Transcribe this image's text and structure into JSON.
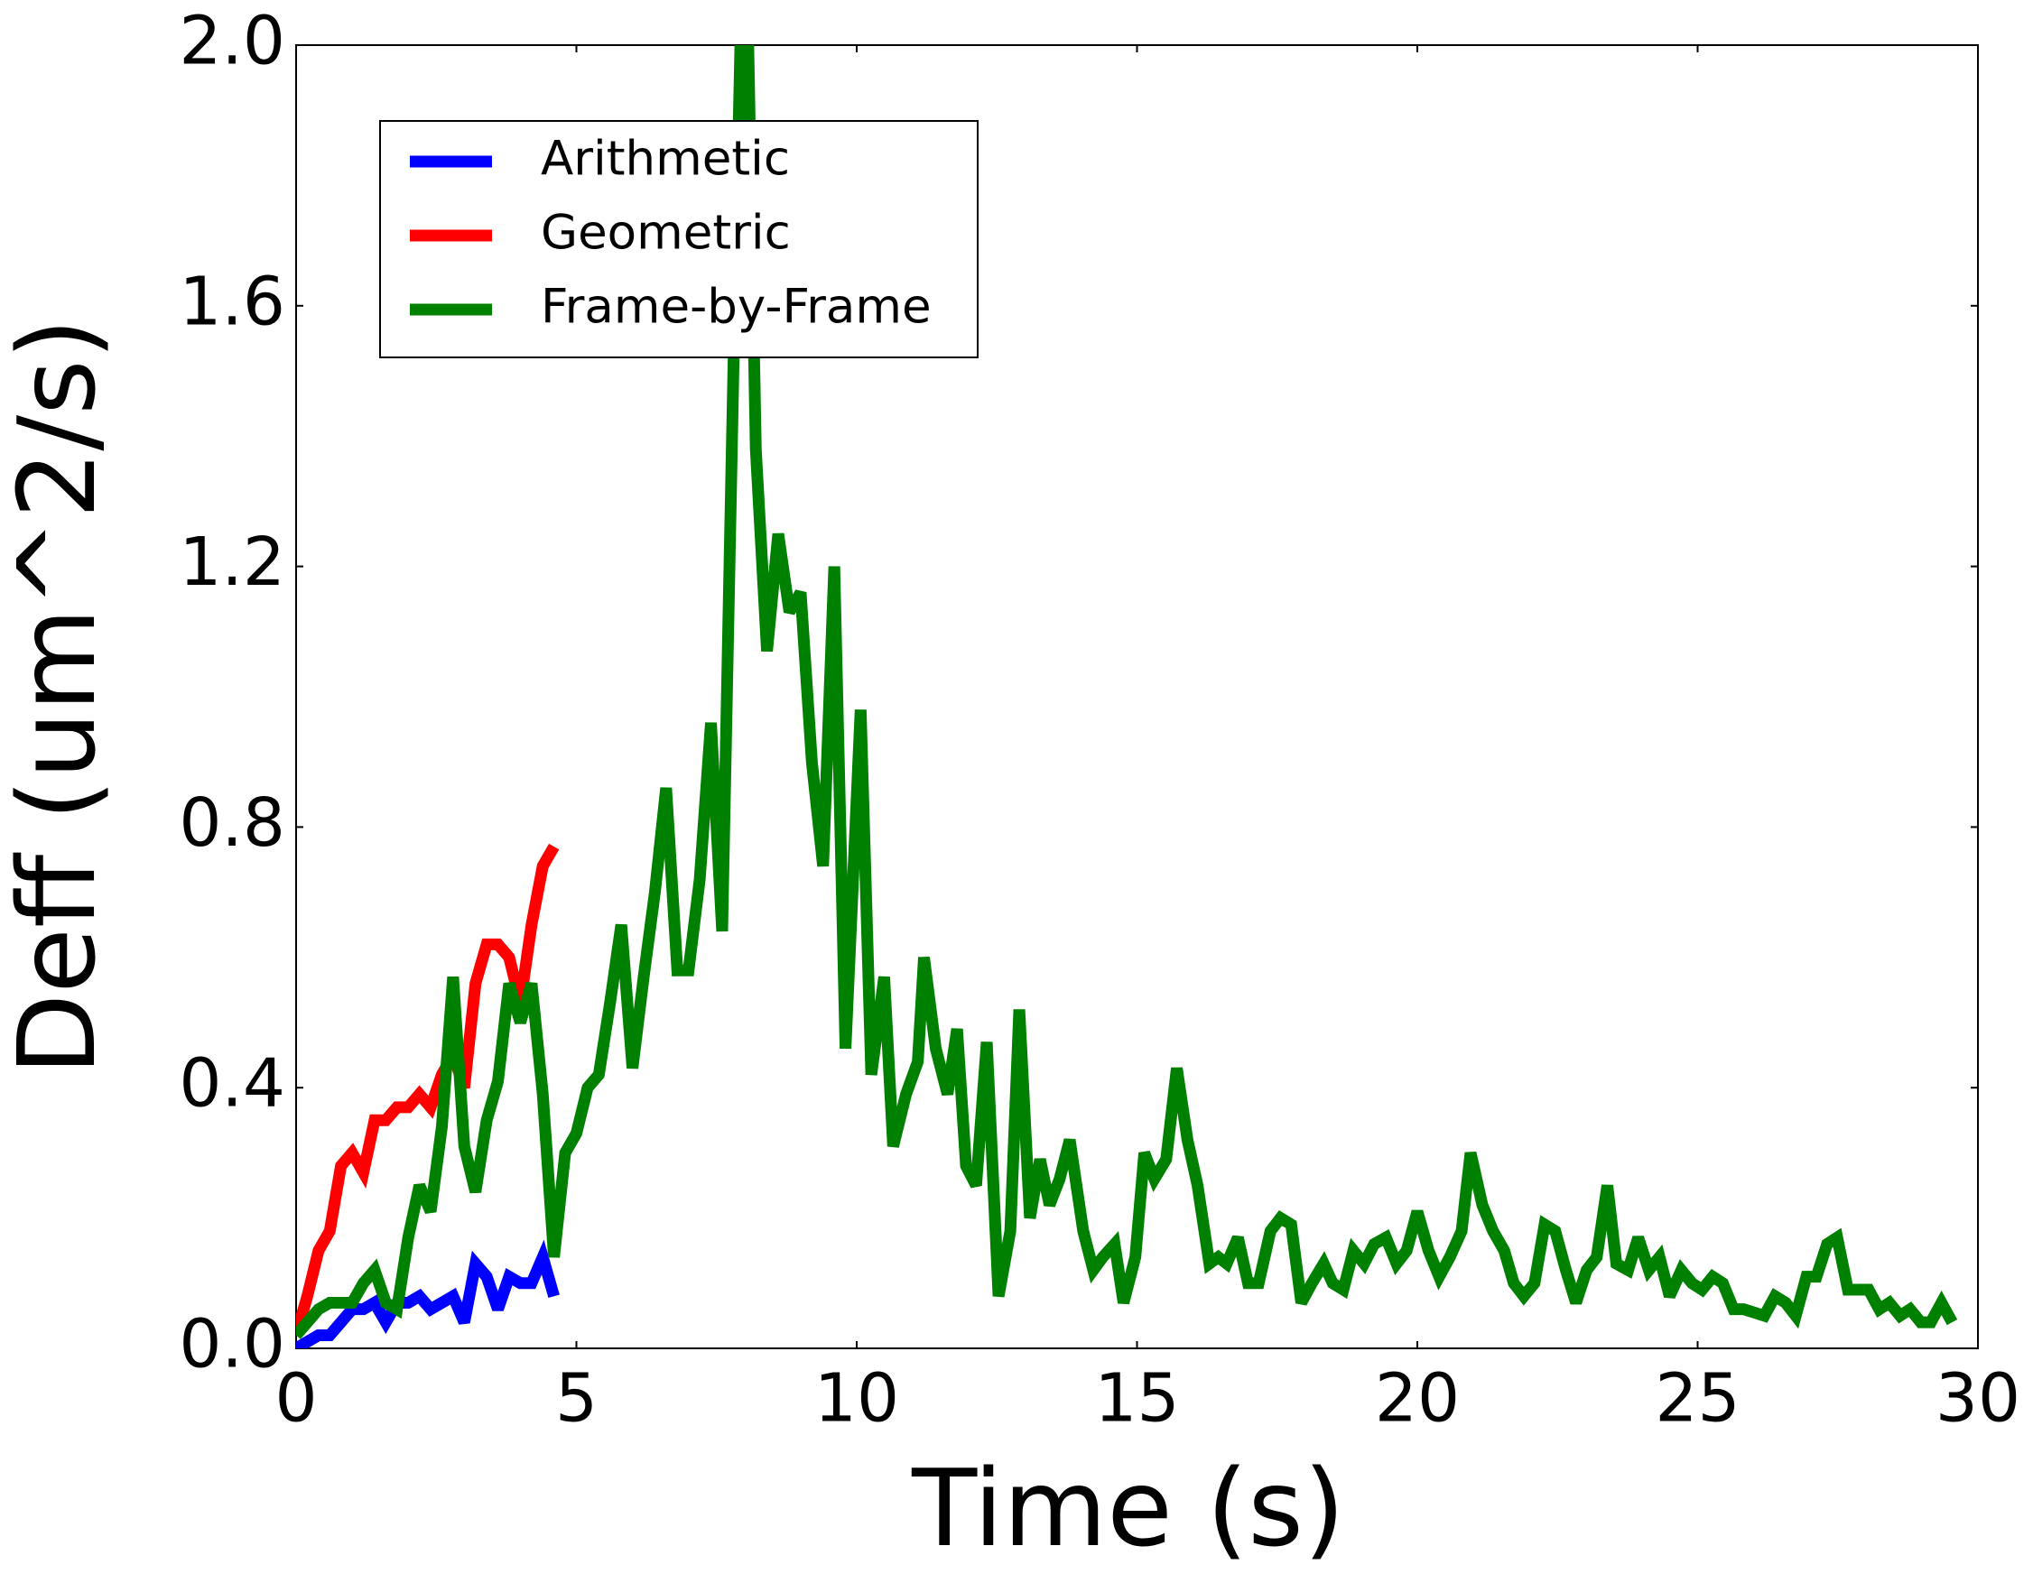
{
  "chart_data": {
    "type": "line",
    "xlabel": "Time (s)",
    "ylabel": "Deff (um^2/s)",
    "xlim": [
      0,
      30
    ],
    "ylim": [
      0,
      2.0
    ],
    "xticks": [
      0,
      5,
      10,
      15,
      20,
      25,
      30
    ],
    "yticks": [
      {
        "value": 0,
        "label": "0.0"
      },
      {
        "value": 0.4,
        "label": "0.4"
      },
      {
        "value": 0.8,
        "label": "0.8"
      },
      {
        "value": 1.2,
        "label": "1.2"
      },
      {
        "value": 1.6,
        "label": "1.6"
      },
      {
        "value": 2.0,
        "label": "2.0"
      }
    ],
    "legend": "upper left",
    "series": [
      {
        "name": "Arithmetic",
        "color": "#0000ff",
        "x": [
          0,
          0.2,
          0.4,
          0.6,
          0.8,
          1.0,
          1.2,
          1.4,
          1.6,
          1.8,
          2.0,
          2.2,
          2.4,
          2.6,
          2.8,
          3.0,
          3.2,
          3.4,
          3.6,
          3.8,
          4.0,
          4.2,
          4.4,
          4.6
        ],
        "values": [
          0,
          0.01,
          0.02,
          0.02,
          0.04,
          0.06,
          0.06,
          0.07,
          0.04,
          0.07,
          0.07,
          0.08,
          0.06,
          0.07,
          0.08,
          0.04,
          0.13,
          0.11,
          0.06,
          0.11,
          0.1,
          0.1,
          0.14,
          0.08
        ]
      },
      {
        "name": "Geometric",
        "color": "#ff0000",
        "x": [
          0,
          0.2,
          0.4,
          0.6,
          0.8,
          1.0,
          1.2,
          1.4,
          1.6,
          1.8,
          2.0,
          2.2,
          2.4,
          2.6,
          2.8,
          3.0,
          3.2,
          3.4,
          3.6,
          3.8,
          4.0,
          4.2,
          4.4,
          4.6
        ],
        "values": [
          0.02,
          0.08,
          0.15,
          0.18,
          0.28,
          0.3,
          0.27,
          0.35,
          0.35,
          0.37,
          0.37,
          0.39,
          0.37,
          0.42,
          0.45,
          0.4,
          0.56,
          0.62,
          0.62,
          0.6,
          0.53,
          0.65,
          0.74,
          0.77
        ]
      },
      {
        "name": "Frame-by-Frame",
        "color": "#008000",
        "x": [
          0,
          0.2,
          0.4,
          0.6,
          0.8,
          1.0,
          1.2,
          1.4,
          1.6,
          1.8,
          2.0,
          2.2,
          2.4,
          2.6,
          2.8,
          3.0,
          3.2,
          3.4,
          3.6,
          3.8,
          4.0,
          4.2,
          4.4,
          4.6,
          4.8,
          5.0,
          5.2,
          5.4,
          5.6,
          5.8,
          6.0,
          6.2,
          6.4,
          6.6,
          6.8,
          7.0,
          7.2,
          7.4,
          7.6,
          7.8,
          8.0,
          8.2,
          8.4,
          8.6,
          8.8,
          9.0,
          9.2,
          9.4,
          9.6,
          9.8,
          10.07,
          10.26,
          10.49,
          10.65,
          10.88,
          11.09,
          11.2,
          11.41,
          11.62,
          11.79,
          11.95,
          12.13,
          12.32,
          12.53,
          12.74,
          12.9,
          13.09,
          13.27,
          13.44,
          13.62,
          13.8,
          14.04,
          14.22,
          14.39,
          14.6,
          14.76,
          14.97,
          15.13,
          15.31,
          15.52,
          15.71,
          15.9,
          16.08,
          16.29,
          16.45,
          16.6,
          16.8,
          16.98,
          17.17,
          17.38,
          17.56,
          17.75,
          17.93,
          18.12,
          18.33,
          18.49,
          18.68,
          18.86,
          19.05,
          19.23,
          19.44,
          19.63,
          19.81,
          20.0,
          20.2,
          20.39,
          20.58,
          20.79,
          20.95,
          21.16,
          21.35,
          21.55,
          21.72,
          21.9,
          22.09,
          22.27,
          22.46,
          22.65,
          22.83,
          23.02,
          23.2,
          23.39,
          23.55,
          23.76,
          23.94,
          24.13,
          24.32,
          24.5,
          24.71,
          24.9,
          25.08,
          25.27,
          25.45,
          25.64,
          25.82,
          26.01,
          26.19,
          26.38,
          26.57,
          26.75,
          26.94,
          27.12,
          27.31,
          27.49,
          27.68,
          27.87,
          28.05,
          28.24,
          28.42,
          28.61,
          28.79,
          28.98,
          29.16,
          29.35,
          29.54
        ],
        "values": [
          0.02,
          0.04,
          0.06,
          0.07,
          0.07,
          0.07,
          0.1,
          0.12,
          0.07,
          0.06,
          0.17,
          0.25,
          0.21,
          0.34,
          0.57,
          0.31,
          0.24,
          0.35,
          0.41,
          0.56,
          0.5,
          0.56,
          0.39,
          0.14,
          0.3,
          0.33,
          0.4,
          0.42,
          0.53,
          0.65,
          0.43,
          0.57,
          0.7,
          0.86,
          0.58,
          0.58,
          0.72,
          0.96,
          0.64,
          1.5,
          2.3,
          1.38,
          1.07,
          1.25,
          1.13,
          1.16,
          0.9,
          0.74,
          1.2,
          0.46,
          0.98,
          0.42,
          0.57,
          0.31,
          0.39,
          0.44,
          0.6,
          0.46,
          0.39,
          0.49,
          0.28,
          0.25,
          0.47,
          0.08,
          0.18,
          0.52,
          0.2,
          0.29,
          0.22,
          0.26,
          0.32,
          0.18,
          0.12,
          0.14,
          0.16,
          0.07,
          0.14,
          0.3,
          0.26,
          0.29,
          0.43,
          0.32,
          0.25,
          0.13,
          0.14,
          0.13,
          0.17,
          0.1,
          0.1,
          0.18,
          0.2,
          0.19,
          0.07,
          0.1,
          0.13,
          0.1,
          0.09,
          0.15,
          0.13,
          0.16,
          0.17,
          0.13,
          0.15,
          0.21,
          0.15,
          0.11,
          0.14,
          0.18,
          0.3,
          0.22,
          0.18,
          0.15,
          0.1,
          0.08,
          0.1,
          0.19,
          0.18,
          0.12,
          0.07,
          0.12,
          0.14,
          0.25,
          0.13,
          0.12,
          0.17,
          0.12,
          0.14,
          0.08,
          0.12,
          0.1,
          0.09,
          0.11,
          0.1,
          0.06,
          0.06,
          0.055,
          0.05,
          0.08,
          0.07,
          0.05,
          0.11,
          0.11,
          0.16,
          0.17,
          0.09,
          0.09,
          0.09,
          0.06,
          0.07,
          0.05,
          0.06,
          0.04,
          0.04,
          0.07,
          0.04
        ]
      }
    ]
  }
}
